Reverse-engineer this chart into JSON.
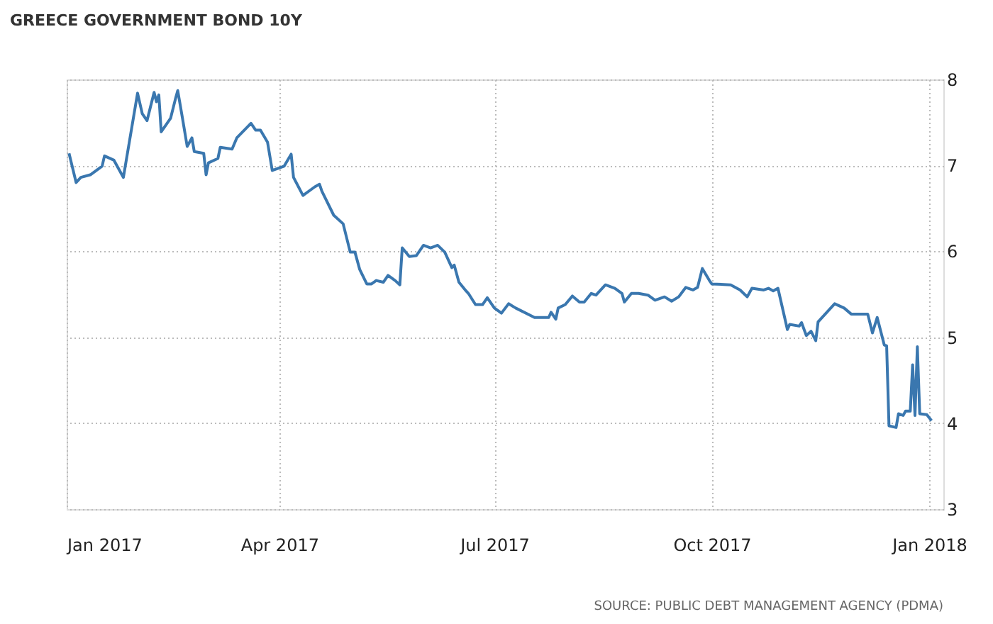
{
  "chart_data": {
    "type": "line",
    "title": "GREECE GOVERNMENT BOND 10Y",
    "annotations": [
      "SOURCE: PUBLIC DEBT MANAGEMENT AGENCY (PDMA)"
    ],
    "x": [
      "2017-01-02",
      "2017-01-05",
      "2017-01-07",
      "2017-01-11",
      "2017-01-16",
      "2017-01-17",
      "2017-01-21",
      "2017-01-25",
      "2017-01-31",
      "2017-02-02",
      "2017-02-04",
      "2017-02-07",
      "2017-02-08",
      "2017-02-09",
      "2017-02-10",
      "2017-02-14",
      "2017-02-16",
      "2017-02-17",
      "2017-02-19",
      "2017-02-21",
      "2017-02-23",
      "2017-02-24",
      "2017-02-28",
      "2017-03-01",
      "2017-03-02",
      "2017-03-06",
      "2017-03-07",
      "2017-03-12",
      "2017-03-14",
      "2017-03-20",
      "2017-03-22",
      "2017-03-24",
      "2017-03-27",
      "2017-03-29",
      "2017-04-03",
      "2017-04-06",
      "2017-04-07",
      "2017-04-11",
      "2017-04-16",
      "2017-04-18",
      "2017-04-19",
      "2017-04-24",
      "2017-04-28",
      "2017-05-01",
      "2017-05-03",
      "2017-05-05",
      "2017-05-08",
      "2017-05-10",
      "2017-05-12",
      "2017-05-15",
      "2017-05-17",
      "2017-05-20",
      "2017-05-22",
      "2017-05-23",
      "2017-05-26",
      "2017-05-29",
      "2017-06-01",
      "2017-06-04",
      "2017-06-07",
      "2017-06-10",
      "2017-06-13",
      "2017-06-14",
      "2017-06-16",
      "2017-06-19",
      "2017-06-20",
      "2017-06-23",
      "2017-06-26",
      "2017-06-28",
      "2017-07-01",
      "2017-07-04",
      "2017-07-07",
      "2017-07-10",
      "2017-07-18",
      "2017-07-24",
      "2017-07-25",
      "2017-07-27",
      "2017-07-28",
      "2017-07-31",
      "2017-08-03",
      "2017-08-06",
      "2017-08-08",
      "2017-08-11",
      "2017-08-13",
      "2017-08-17",
      "2017-08-21",
      "2017-08-24",
      "2017-08-25",
      "2017-08-28",
      "2017-08-31",
      "2017-09-04",
      "2017-09-07",
      "2017-09-11",
      "2017-09-14",
      "2017-09-17",
      "2017-09-20",
      "2017-09-23",
      "2017-09-25",
      "2017-09-27",
      "2017-09-30",
      "2017-10-01",
      "2017-10-09",
      "2017-10-13",
      "2017-10-16",
      "2017-10-18",
      "2017-10-23",
      "2017-10-25",
      "2017-10-27",
      "2017-10-29",
      "2017-11-02",
      "2017-11-03",
      "2017-11-07",
      "2017-11-08",
      "2017-11-10",
      "2017-11-12",
      "2017-11-14",
      "2017-11-15",
      "2017-11-22",
      "2017-11-26",
      "2017-11-29",
      "2017-12-06",
      "2017-12-08",
      "2017-12-10",
      "2017-12-13",
      "2017-12-14",
      "2017-12-15",
      "2017-12-18",
      "2017-12-19",
      "2017-12-21",
      "2017-12-22",
      "2017-12-24",
      "2017-12-25",
      "2017-12-26",
      "2017-12-27",
      "2017-12-28",
      "2017-12-31",
      "2018-01-02"
    ],
    "series": [
      {
        "color": "#3a77af",
        "values": [
          7.14,
          6.8,
          6.86,
          6.89,
          6.99,
          7.11,
          7.06,
          6.86,
          7.84,
          7.6,
          7.52,
          7.85,
          7.74,
          7.82,
          7.39,
          7.55,
          7.77,
          7.87,
          7.55,
          7.22,
          7.32,
          7.16,
          7.14,
          6.89,
          7.03,
          7.08,
          7.21,
          7.19,
          7.32,
          7.49,
          7.41,
          7.41,
          7.27,
          6.94,
          6.99,
          7.13,
          6.86,
          6.65,
          6.75,
          6.78,
          6.7,
          6.42,
          6.32,
          5.99,
          5.99,
          5.79,
          5.62,
          5.62,
          5.66,
          5.64,
          5.72,
          5.66,
          5.61,
          6.04,
          5.94,
          5.95,
          6.07,
          6.04,
          6.07,
          5.99,
          5.81,
          5.84,
          5.64,
          5.54,
          5.51,
          5.38,
          5.38,
          5.46,
          5.34,
          5.28,
          5.39,
          5.34,
          5.23,
          5.23,
          5.29,
          5.21,
          5.34,
          5.38,
          5.48,
          5.41,
          5.41,
          5.51,
          5.49,
          5.61,
          5.57,
          5.51,
          5.41,
          5.51,
          5.51,
          5.49,
          5.43,
          5.47,
          5.42,
          5.47,
          5.58,
          5.55,
          5.58,
          5.8,
          5.66,
          5.62,
          5.61,
          5.55,
          5.47,
          5.57,
          5.55,
          5.57,
          5.54,
          5.57,
          5.09,
          5.15,
          5.13,
          5.17,
          5.02,
          5.07,
          4.96,
          5.18,
          5.39,
          5.34,
          5.27,
          5.27,
          5.05,
          5.23,
          4.91,
          4.9,
          3.97,
          3.95,
          4.11,
          4.09,
          4.14,
          4.14,
          4.68,
          4.09,
          4.89,
          4.11,
          4.1,
          4.03
        ]
      }
    ],
    "xlim": [
      "2017-01-01",
      "2018-01-07"
    ],
    "xticks": [
      {
        "value": "2017-01-01",
        "label": "Jan 2017"
      },
      {
        "value": "2017-04-01",
        "label": "Apr 2017"
      },
      {
        "value": "2017-07-01",
        "label": "Jul 2017"
      },
      {
        "value": "2017-10-01",
        "label": "Oct 2017"
      },
      {
        "value": "2018-01-01",
        "label": "Jan 2018"
      }
    ],
    "ylim": [
      3,
      8
    ],
    "yticks": [
      3,
      4,
      5,
      6,
      7,
      8
    ],
    "grid": true,
    "marker": "none",
    "line_style": "solid"
  }
}
